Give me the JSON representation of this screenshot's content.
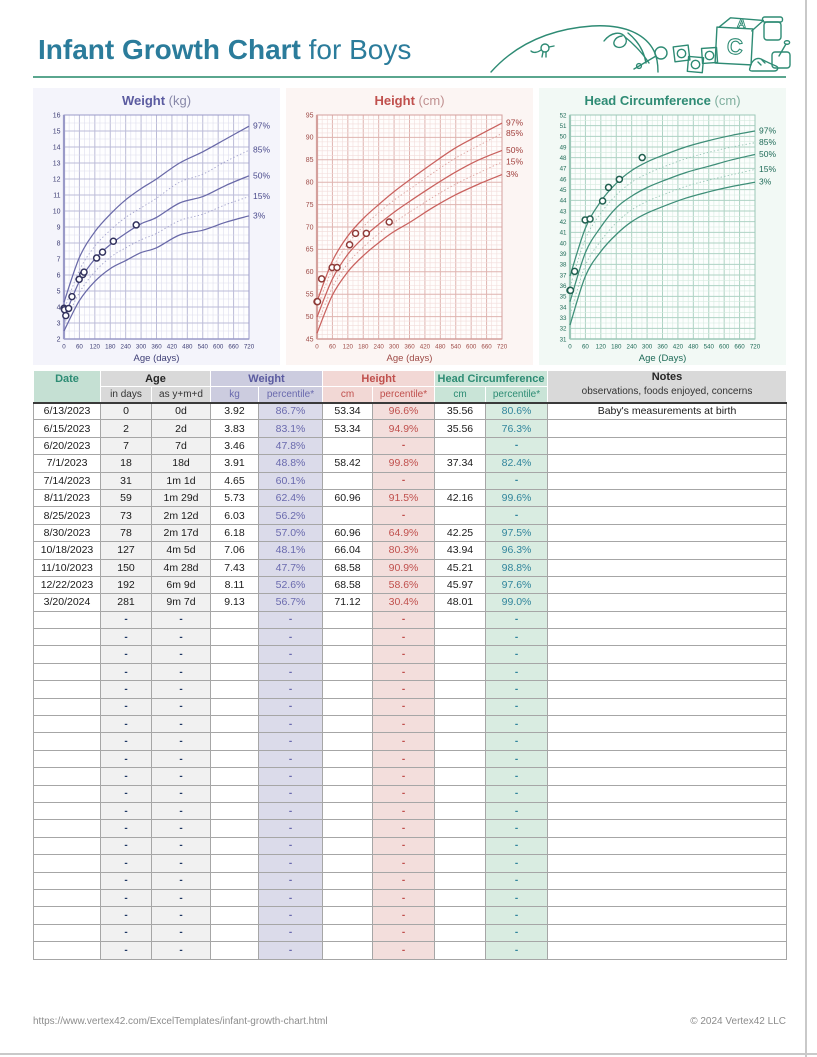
{
  "page": {
    "title_bold": "Infant Growth Chart",
    "title_rest": " for Boys",
    "footer_url": "https://www.vertex42.com/ExcelTemplates/infant-growth-chart.html",
    "footer_copyright": "© 2024 Vertex42 LLC",
    "accent_teal": "#2E8B74",
    "title_color": "#2B7C9B"
  },
  "table": {
    "headers": {
      "date": "Date",
      "age": "Age",
      "age_days": "in days",
      "age_ymd": "as y+m+d",
      "weight": "Weight",
      "kg": "kg",
      "pct": "percentile*",
      "height": "Height",
      "cm": "cm",
      "head": "Head Circumference",
      "notes": "Notes",
      "notes_sub": "observations, foods enjoyed, concerns"
    },
    "rows": [
      [
        "6/13/2023",
        "0",
        "0d",
        "3.92",
        "86.7%",
        "53.34",
        "96.6%",
        "35.56",
        "80.6%",
        "Baby's measurements at birth"
      ],
      [
        "6/15/2023",
        "2",
        "2d",
        "3.83",
        "83.1%",
        "53.34",
        "94.9%",
        "35.56",
        "76.3%",
        ""
      ],
      [
        "6/20/2023",
        "7",
        "7d",
        "3.46",
        "47.8%",
        "",
        "-",
        "",
        "-",
        ""
      ],
      [
        "7/1/2023",
        "18",
        "18d",
        "3.91",
        "48.8%",
        "58.42",
        "99.8%",
        "37.34",
        "82.4%",
        ""
      ],
      [
        "7/14/2023",
        "31",
        "1m 1d",
        "4.65",
        "60.1%",
        "",
        "-",
        "",
        "-",
        ""
      ],
      [
        "8/11/2023",
        "59",
        "1m 29d",
        "5.73",
        "62.4%",
        "60.96",
        "91.5%",
        "42.16",
        "99.6%",
        ""
      ],
      [
        "8/25/2023",
        "73",
        "2m 12d",
        "6.03",
        "56.2%",
        "",
        "-",
        "",
        "-",
        ""
      ],
      [
        "8/30/2023",
        "78",
        "2m 17d",
        "6.18",
        "57.0%",
        "60.96",
        "64.9%",
        "42.25",
        "97.5%",
        ""
      ],
      [
        "10/18/2023",
        "127",
        "4m 5d",
        "7.06",
        "48.1%",
        "66.04",
        "80.3%",
        "43.94",
        "96.3%",
        ""
      ],
      [
        "11/10/2023",
        "150",
        "4m 28d",
        "7.43",
        "47.7%",
        "68.58",
        "90.9%",
        "45.21",
        "98.8%",
        ""
      ],
      [
        "12/22/2023",
        "192",
        "6m 9d",
        "8.11",
        "52.6%",
        "68.58",
        "58.6%",
        "45.97",
        "97.6%",
        ""
      ],
      [
        "3/20/2024",
        "281",
        "9m 7d",
        "9.13",
        "56.7%",
        "71.12",
        "30.4%",
        "48.01",
        "99.0%",
        ""
      ],
      [
        "",
        "-",
        "-",
        "",
        "-",
        "",
        "-",
        "",
        "-",
        ""
      ],
      [
        "",
        "-",
        "-",
        "",
        "-",
        "",
        "-",
        "",
        "-",
        ""
      ],
      [
        "",
        "-",
        "-",
        "",
        "-",
        "",
        "-",
        "",
        "-",
        ""
      ],
      [
        "",
        "-",
        "-",
        "",
        "-",
        "",
        "-",
        "",
        "-",
        ""
      ],
      [
        "",
        "-",
        "-",
        "",
        "-",
        "",
        "-",
        "",
        "-",
        ""
      ],
      [
        "",
        "-",
        "-",
        "",
        "-",
        "",
        "-",
        "",
        "-",
        ""
      ],
      [
        "",
        "-",
        "-",
        "",
        "-",
        "",
        "-",
        "",
        "-",
        ""
      ],
      [
        "",
        "-",
        "-",
        "",
        "-",
        "",
        "-",
        "",
        "-",
        ""
      ],
      [
        "",
        "-",
        "-",
        "",
        "-",
        "",
        "-",
        "",
        "-",
        ""
      ],
      [
        "",
        "-",
        "-",
        "",
        "-",
        "",
        "-",
        "",
        "-",
        ""
      ],
      [
        "",
        "-",
        "-",
        "",
        "-",
        "",
        "-",
        "",
        "-",
        ""
      ],
      [
        "",
        "-",
        "-",
        "",
        "-",
        "",
        "-",
        "",
        "-",
        ""
      ],
      [
        "",
        "-",
        "-",
        "",
        "-",
        "",
        "-",
        "",
        "-",
        ""
      ],
      [
        "",
        "-",
        "-",
        "",
        "-",
        "",
        "-",
        "",
        "-",
        ""
      ],
      [
        "",
        "-",
        "-",
        "",
        "-",
        "",
        "-",
        "",
        "-",
        ""
      ],
      [
        "",
        "-",
        "-",
        "",
        "-",
        "",
        "-",
        "",
        "-",
        ""
      ],
      [
        "",
        "-",
        "-",
        "",
        "-",
        "",
        "-",
        "",
        "-",
        ""
      ],
      [
        "",
        "-",
        "-",
        "",
        "-",
        "",
        "-",
        "",
        "-",
        ""
      ],
      [
        "",
        "-",
        "-",
        "",
        "-",
        "",
        "-",
        "",
        "-",
        ""
      ],
      [
        "",
        "-",
        "-",
        "",
        "-",
        "",
        "-",
        "",
        "-",
        ""
      ]
    ]
  },
  "chart_data": [
    {
      "type": "line",
      "id": "weight",
      "title": "Weight",
      "unit": "(kg)",
      "xlabel": "Age (days)",
      "xlim": [
        0,
        720
      ],
      "x_major": 60,
      "x_minor": 20,
      "ylim": [
        2,
        16
      ],
      "y_major": 1,
      "y_minor": 0.5,
      "legend_position": "right",
      "sample_days": [
        0,
        60,
        120,
        180,
        240,
        300,
        360,
        450,
        540,
        630,
        720
      ],
      "percentiles": [
        {
          "label": "97%",
          "style": "solid",
          "values": [
            4.3,
            7.1,
            8.7,
            9.8,
            10.7,
            11.4,
            12.0,
            13.0,
            13.7,
            14.5,
            15.3
          ]
        },
        {
          "label": "85%",
          "style": "dotted",
          "values": [
            3.8,
            6.3,
            7.8,
            8.8,
            9.6,
            10.2,
            10.8,
            11.8,
            12.3,
            13.1,
            13.8
          ]
        },
        {
          "label": "50%",
          "style": "solid",
          "values": [
            3.3,
            5.6,
            7.0,
            7.9,
            8.6,
            9.2,
            9.6,
            10.5,
            10.9,
            11.6,
            12.2
          ]
        },
        {
          "label": "15%",
          "style": "dotted",
          "values": [
            2.9,
            4.9,
            6.2,
            7.1,
            7.7,
            8.2,
            8.6,
            9.4,
            9.8,
            10.4,
            10.9
          ]
        },
        {
          "label": "3%",
          "style": "solid",
          "values": [
            2.5,
            4.4,
            5.6,
            6.4,
            6.9,
            7.4,
            7.7,
            8.5,
            8.8,
            9.3,
            9.7
          ]
        }
      ],
      "points": {
        "x": [
          0,
          2,
          7,
          18,
          31,
          59,
          73,
          78,
          127,
          150,
          192,
          281
        ],
        "y": [
          3.92,
          3.83,
          3.46,
          3.91,
          4.65,
          5.73,
          6.03,
          6.18,
          7.06,
          7.43,
          8.11,
          9.13
        ]
      },
      "colors": {
        "solid": "#6969a8",
        "dotted": "#a3a3cc",
        "label": "#4a4a8c",
        "grid_minor": "#dedeee",
        "grid_major": "#bcbcd8",
        "axis": "#9a9ac8",
        "tick": "#3f3f76",
        "point": "#32325e",
        "plot_bg": "#fefeff"
      }
    },
    {
      "type": "line",
      "id": "height",
      "title": "Height",
      "unit": "(cm)",
      "xlabel": "Age (days)",
      "xlim": [
        0,
        720
      ],
      "x_major": 60,
      "x_minor": 20,
      "ylim": [
        45,
        95
      ],
      "y_major": 5,
      "y_minor": 1,
      "legend_position": "right",
      "sample_days": [
        0,
        60,
        120,
        180,
        240,
        300,
        360,
        450,
        540,
        630,
        720
      ],
      "percentiles": [
        {
          "label": "97%",
          "style": "solid",
          "values": [
            53.4,
            62.4,
            68.0,
            71.9,
            75.0,
            77.9,
            80.5,
            84.2,
            87.7,
            90.5,
            93.2
          ]
        },
        {
          "label": "85%",
          "style": "dotted",
          "values": [
            51.8,
            60.7,
            66.3,
            70.1,
            73.2,
            76.0,
            78.4,
            82.0,
            85.4,
            88.2,
            90.9
          ]
        },
        {
          "label": "50%",
          "style": "solid",
          "values": [
            49.9,
            58.4,
            63.9,
            67.6,
            70.6,
            73.3,
            75.7,
            79.1,
            82.3,
            85.0,
            87.1
          ]
        },
        {
          "label": "15%",
          "style": "dotted",
          "values": [
            48.1,
            56.5,
            61.9,
            65.5,
            68.5,
            71.0,
            73.3,
            76.6,
            79.6,
            82.1,
            84.5
          ]
        },
        {
          "label": "3%",
          "style": "solid",
          "values": [
            46.3,
            54.8,
            60.0,
            63.6,
            66.5,
            69.0,
            71.0,
            74.3,
            77.2,
            79.6,
            81.7
          ]
        }
      ],
      "points": {
        "x": [
          0,
          2,
          18,
          59,
          78,
          127,
          150,
          192,
          281
        ],
        "y": [
          53.34,
          53.34,
          58.42,
          60.96,
          60.96,
          66.04,
          68.58,
          68.58,
          71.12
        ]
      },
      "colors": {
        "solid": "#c9615e",
        "dotted": "#dca09c",
        "label": "#a03e3b",
        "grid_minor": "#f2dcda",
        "grid_major": "#dfb4b0",
        "axis": "#d4a09c",
        "tick": "#9e4b47",
        "point": "#8e3a37",
        "plot_bg": "#fffdfc"
      }
    },
    {
      "type": "line",
      "id": "head",
      "title": "Head Circumference",
      "unit": "(cm)",
      "xlabel": "Age (Days)",
      "xlim": [
        0,
        720
      ],
      "x_major": 60,
      "x_minor": 20,
      "ylim": [
        31,
        52
      ],
      "y_major": 1,
      "y_minor": 0.5,
      "legend_position": "right",
      "sample_days": [
        0,
        60,
        120,
        180,
        240,
        300,
        360,
        450,
        540,
        630,
        720
      ],
      "percentiles": [
        {
          "label": "97%",
          "style": "solid",
          "values": [
            36.9,
            41.4,
            43.9,
            45.6,
            46.8,
            47.6,
            48.2,
            49.0,
            49.6,
            50.1,
            50.5
          ]
        },
        {
          "label": "85%",
          "style": "dotted",
          "values": [
            35.9,
            40.4,
            42.8,
            44.5,
            45.7,
            46.5,
            47.1,
            47.9,
            48.5,
            49.0,
            49.4
          ]
        },
        {
          "label": "50%",
          "style": "solid",
          "values": [
            34.5,
            39.1,
            41.5,
            43.3,
            44.4,
            45.2,
            45.8,
            46.6,
            47.2,
            47.8,
            48.3
          ]
        },
        {
          "label": "15%",
          "style": "dotted",
          "values": [
            33.3,
            37.9,
            40.2,
            41.9,
            43.1,
            43.9,
            44.5,
            45.3,
            45.9,
            46.4,
            46.9
          ]
        },
        {
          "label": "3%",
          "style": "solid",
          "values": [
            32.3,
            36.9,
            39.2,
            40.8,
            42.0,
            42.8,
            43.4,
            44.2,
            44.8,
            45.3,
            45.7
          ]
        }
      ],
      "points": {
        "x": [
          0,
          2,
          18,
          59,
          78,
          127,
          150,
          192,
          281
        ],
        "y": [
          35.56,
          35.56,
          37.34,
          42.16,
          42.25,
          43.94,
          45.21,
          45.97,
          48.01
        ]
      },
      "colors": {
        "solid": "#3e8e78",
        "dotted": "#96c5b5",
        "label": "#1f6b58",
        "grid_minor": "#d5eae0",
        "grid_major": "#aed3c4",
        "axis": "#9cc8b8",
        "tick": "#1f6b58",
        "point": "#1f5f4f",
        "plot_bg": "#fcfefd"
      }
    }
  ]
}
